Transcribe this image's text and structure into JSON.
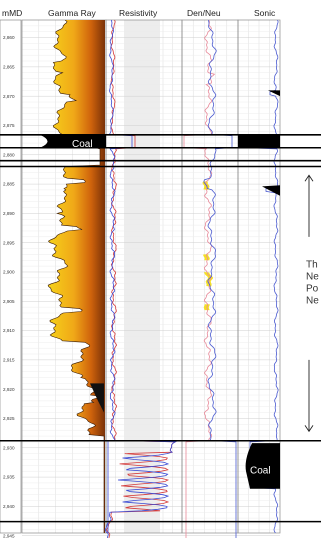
{
  "chart_data": {
    "type": "well-log",
    "depth_label": "mMD",
    "tracks": [
      "Gamma Ray",
      "Resistivity",
      "Den/Neu",
      "Sonic"
    ],
    "depth_range": [
      2857,
      2949
    ],
    "depth_ticks": [
      {
        "label": "2,860",
        "depth": 2860
      },
      {
        "label": "2,865",
        "depth": 2865
      },
      {
        "label": "2,870",
        "depth": 2870
      },
      {
        "label": "2,875",
        "depth": 2875
      },
      {
        "label": "2,880",
        "depth": 2880
      },
      {
        "label": "2,885",
        "depth": 2885
      },
      {
        "label": "2,890",
        "depth": 2890
      },
      {
        "label": "2,895",
        "depth": 2895
      },
      {
        "label": "2,900",
        "depth": 2900
      },
      {
        "label": "2,905",
        "depth": 2905
      },
      {
        "label": "2,910",
        "depth": 2910
      },
      {
        "label": "2,915",
        "depth": 2915
      },
      {
        "label": "2,920",
        "depth": 2920
      },
      {
        "label": "2,925",
        "depth": 2925
      },
      {
        "label": "2,930",
        "depth": 2930
      },
      {
        "label": "2,935",
        "depth": 2935
      },
      {
        "label": "2,940",
        "depth": 2940
      },
      {
        "label": "2,945",
        "depth": 2945
      }
    ],
    "horizons": [
      2876.6,
      2878.8,
      2881.0,
      2882.0,
      2928.8,
      2942.6
    ],
    "coal_labels": [
      {
        "text": "Coal",
        "track": "Gamma Ray",
        "depth": 2878.1
      },
      {
        "text": "Coal",
        "track": "Sonic",
        "depth": 2933.8
      }
    ],
    "annotation_lines": [
      "Th",
      "Ne",
      "Po",
      "Ne"
    ],
    "annotation_arrow": [
      2883.5,
      2927.2
    ]
  }
}
